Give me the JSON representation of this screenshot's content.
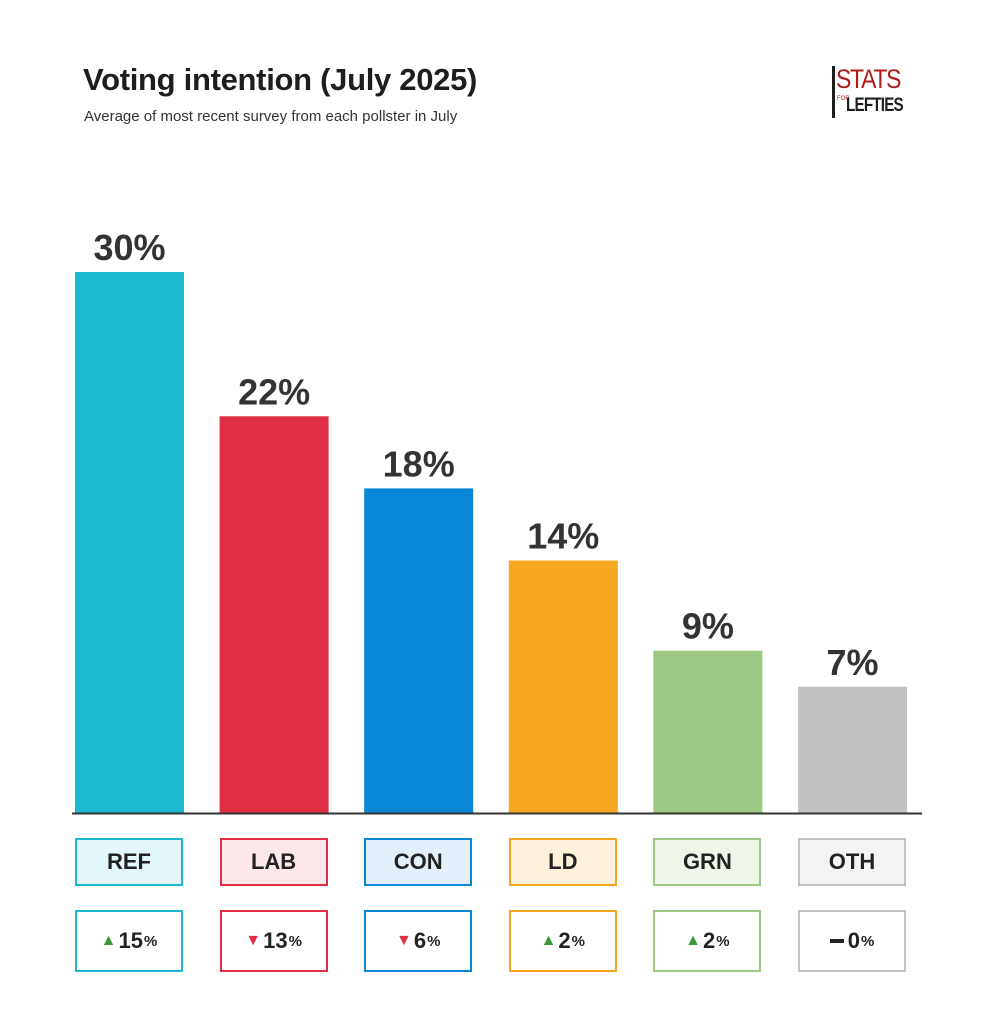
{
  "header": {
    "title": "Voting intention (July 2025)",
    "subtitle": "Average of most recent survey from each pollster in July",
    "logo_text_top": "STATS",
    "logo_text_small": "FOR",
    "logo_text_bottom": "LEFTIES"
  },
  "chart_data": {
    "type": "bar",
    "title": "Voting intention (July 2025)",
    "subtitle": "Average of most recent survey from each pollster in July",
    "categories": [
      "REF",
      "LAB",
      "CON",
      "LD",
      "GRN",
      "OTH"
    ],
    "values": [
      30,
      22,
      18,
      14,
      9,
      7
    ],
    "value_labels": [
      "30%",
      "22%",
      "18%",
      "14%",
      "9%",
      "7%"
    ],
    "changes": [
      {
        "direction": "up",
        "value": "15",
        "unit": "%"
      },
      {
        "direction": "down",
        "value": "13",
        "unit": "%"
      },
      {
        "direction": "down",
        "value": "6",
        "unit": "%"
      },
      {
        "direction": "up",
        "value": "2",
        "unit": "%"
      },
      {
        "direction": "up",
        "value": "2",
        "unit": "%"
      },
      {
        "direction": "none",
        "value": "0",
        "unit": "%"
      }
    ],
    "colors": [
      "#1cb8d0",
      "#e02e45",
      "#0a86d6",
      "#f6a61f",
      "#9fc982",
      "#c2c2c2"
    ],
    "box_fills": [
      "#e3f6f9",
      "#fce8eb",
      "#e3f0fb",
      "#fef1dc",
      "#eef6ea",
      "#f4f4f4"
    ],
    "change_colors": {
      "up": "#3a9a3a",
      "down": "#e02e45"
    },
    "ylim": [
      0,
      30
    ],
    "grid": false,
    "legend": "none"
  }
}
